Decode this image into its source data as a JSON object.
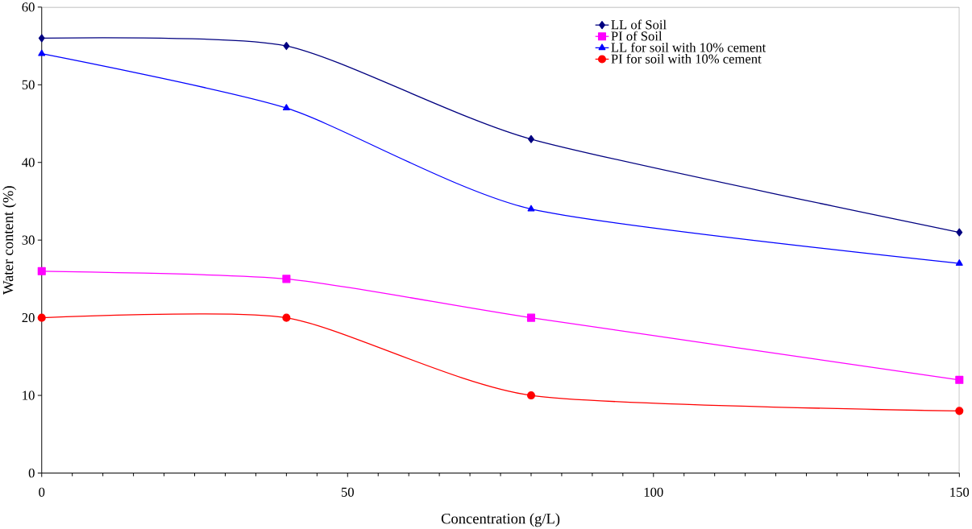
{
  "chart_data": {
    "type": "line",
    "xlabel": "Concentration (g/L)",
    "ylabel": "Water content (%)",
    "x": [
      0,
      40,
      80,
      150
    ],
    "series": [
      {
        "name": "LL of Soil",
        "color": "#000080",
        "marker": "diamond",
        "values": [
          56,
          55,
          43,
          31
        ]
      },
      {
        "name": "PI of Soil",
        "color": "#ff00ff",
        "marker": "square",
        "values": [
          26,
          25,
          20,
          12
        ]
      },
      {
        "name": "LL for soil with 10% cement",
        "color": "#0000ff",
        "marker": "triangle",
        "values": [
          54,
          47,
          34,
          27
        ]
      },
      {
        "name": "PI for soil with 10% cement",
        "color": "#ff0000",
        "marker": "circle",
        "values": [
          20,
          20,
          10,
          8
        ]
      }
    ],
    "xlim": [
      0,
      150
    ],
    "xticks": [
      0,
      50,
      100,
      150
    ],
    "ylim": [
      0,
      60
    ],
    "yticks": [
      0,
      10,
      20,
      30,
      40,
      50,
      60
    ],
    "grid": false,
    "legend": "top right",
    "line_style": "solid"
  }
}
